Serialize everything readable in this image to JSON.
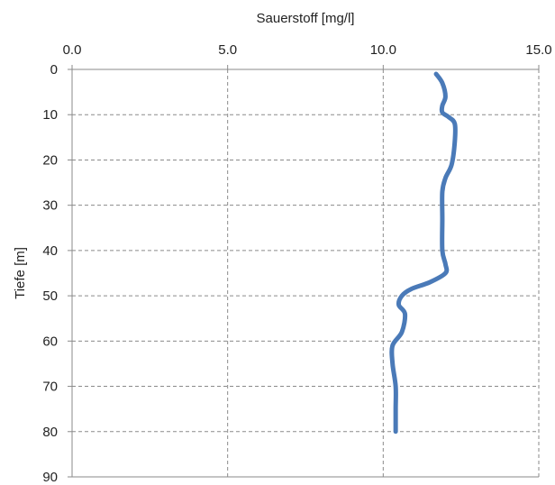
{
  "chart_data": {
    "type": "line",
    "title": "",
    "xlabel": "Sauerstoff [mg/l]",
    "ylabel": "Tiefe [m]",
    "x_axis_position": "top",
    "y_axis_inverted": true,
    "xlim": [
      0,
      15
    ],
    "ylim": [
      0,
      90
    ],
    "x_ticks": [
      "0.0",
      "5.0",
      "10.0",
      "15.0"
    ],
    "y_ticks": [
      "0",
      "10",
      "20",
      "30",
      "40",
      "50",
      "60",
      "70",
      "80",
      "90"
    ],
    "grid": {
      "vertical": "dashed",
      "horizontal": "dashed"
    },
    "series": [
      {
        "color": "#4a7ab8",
        "points": [
          {
            "x": 11.7,
            "y": 1
          },
          {
            "x": 11.9,
            "y": 3
          },
          {
            "x": 12.0,
            "y": 6
          },
          {
            "x": 11.9,
            "y": 8
          },
          {
            "x": 11.9,
            "y": 9.5
          },
          {
            "x": 12.1,
            "y": 10.5
          },
          {
            "x": 12.3,
            "y": 12
          },
          {
            "x": 12.3,
            "y": 16
          },
          {
            "x": 12.2,
            "y": 21
          },
          {
            "x": 12.0,
            "y": 24
          },
          {
            "x": 11.9,
            "y": 27
          },
          {
            "x": 11.9,
            "y": 33
          },
          {
            "x": 11.9,
            "y": 40
          },
          {
            "x": 12.0,
            "y": 43
          },
          {
            "x": 12.0,
            "y": 45
          },
          {
            "x": 11.5,
            "y": 47
          },
          {
            "x": 10.9,
            "y": 48.5
          },
          {
            "x": 10.6,
            "y": 50
          },
          {
            "x": 10.5,
            "y": 52
          },
          {
            "x": 10.7,
            "y": 54
          },
          {
            "x": 10.6,
            "y": 58
          },
          {
            "x": 10.3,
            "y": 61
          },
          {
            "x": 10.3,
            "y": 65
          },
          {
            "x": 10.4,
            "y": 70
          },
          {
            "x": 10.4,
            "y": 75
          },
          {
            "x": 10.4,
            "y": 80
          }
        ]
      }
    ]
  }
}
